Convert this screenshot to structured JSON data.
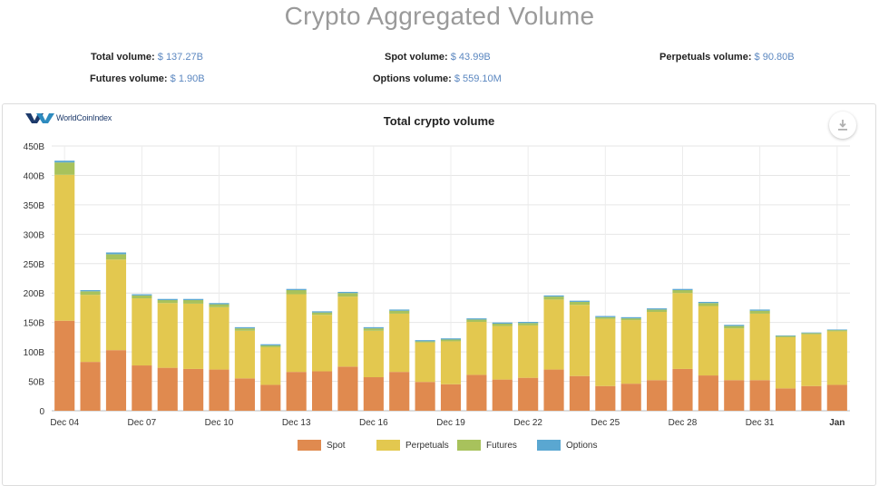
{
  "page": {
    "title": "Crypto Aggregated Volume"
  },
  "stats": [
    {
      "label": "Total volume:",
      "value": "$ 137.27B"
    },
    {
      "label": "Spot volume:",
      "value": "$ 43.99B"
    },
    {
      "label": "Perpetuals volume:",
      "value": "$ 90.80B"
    },
    {
      "label": "Futures volume:",
      "value": "$ 1.90B"
    },
    {
      "label": "Options volume:",
      "value": "$ 559.10M"
    }
  ],
  "logo": {
    "text": "WorldCoinIndex"
  },
  "icons": {
    "download": "download-icon",
    "logo": "worldcoinindex-logo-icon"
  },
  "colors": {
    "Spot": "#e08a4f",
    "Perpetuals": "#e3c84f",
    "Futures": "#a8c25c",
    "Options": "#5aa7d1"
  },
  "chart_data": {
    "type": "bar",
    "stacked": true,
    "title": "Total crypto volume",
    "xlabel": "",
    "ylabel": "",
    "ylim": [
      0,
      450
    ],
    "y_ticks": [
      "0",
      "50B",
      "100B",
      "150B",
      "200B",
      "250B",
      "300B",
      "350B",
      "400B",
      "450B"
    ],
    "x_tick_labels": [
      "Dec 04",
      "Dec 07",
      "Dec 10",
      "Dec 13",
      "Dec 16",
      "Dec 19",
      "Dec 22",
      "Dec 25",
      "Dec 28",
      "Dec 31",
      "Jan"
    ],
    "grid": true,
    "legend_position": "bottom",
    "categories": [
      "Dec 04",
      "Dec 05",
      "Dec 06",
      "Dec 07",
      "Dec 08",
      "Dec 09",
      "Dec 10",
      "Dec 11",
      "Dec 12",
      "Dec 13",
      "Dec 14",
      "Dec 15",
      "Dec 16",
      "Dec 17",
      "Dec 18",
      "Dec 19",
      "Dec 20",
      "Dec 21",
      "Dec 22",
      "Dec 23",
      "Dec 24",
      "Dec 25",
      "Dec 26",
      "Dec 27",
      "Dec 28",
      "Dec 29",
      "Dec 30",
      "Dec 31",
      "Jan 01",
      "Jan 02",
      "Jan 03"
    ],
    "series": [
      {
        "name": "Spot",
        "values": [
          153,
          83,
          103,
          77,
          73,
          71,
          70,
          55,
          44,
          66,
          67,
          75,
          57,
          66,
          49,
          45,
          61,
          53,
          56,
          70,
          59,
          42,
          46,
          52,
          71,
          60,
          52,
          52,
          38,
          42,
          44
        ]
      },
      {
        "name": "Perpetuals",
        "values": [
          248,
          114,
          154,
          114,
          110,
          111,
          106,
          81,
          64,
          132,
          96,
          119,
          79,
          99,
          67,
          73,
          90,
          91,
          89,
          119,
          121,
          114,
          108,
          116,
          129,
          118,
          88,
          113,
          87,
          88,
          91
        ]
      },
      {
        "name": "Futures",
        "values": [
          21,
          6,
          9,
          5,
          5,
          6,
          5,
          4,
          3,
          7,
          4,
          6,
          4,
          5,
          2,
          3,
          4,
          4,
          4,
          5,
          5,
          3,
          3,
          4,
          5,
          5,
          4,
          5,
          2,
          2,
          2
        ]
      },
      {
        "name": "Options",
        "values": [
          3,
          2,
          3,
          2,
          2,
          2,
          2,
          2,
          2,
          2,
          2,
          2,
          2,
          2,
          2,
          2,
          2,
          2,
          2,
          2,
          2,
          2,
          2,
          2,
          2,
          2,
          2,
          2,
          1,
          1,
          1
        ]
      }
    ]
  }
}
